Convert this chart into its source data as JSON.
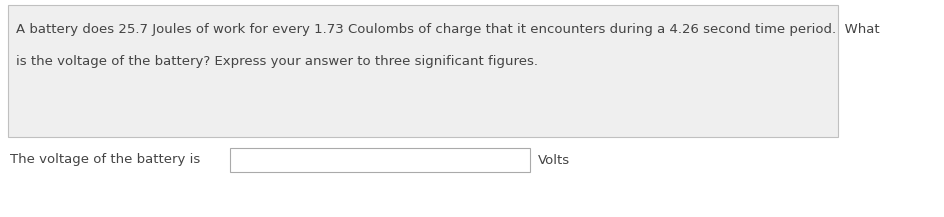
{
  "question_text_line1": "A battery does 25.7 Joules of work for every 1.73 Coulombs of charge that it encounters during a 4.26 second time period.  What",
  "question_text_line2": "is the voltage of the battery? Express your answer to three significant figures.",
  "answer_label": "The voltage of the battery is",
  "answer_unit": "Volts",
  "fig_bg_color": "#ffffff",
  "question_box_color": "#efefef",
  "question_box_border": "#c0c0c0",
  "input_box_bg": "#ffffff",
  "input_box_border": "#aaaaaa",
  "text_color": "#444444",
  "font_size": 9.5,
  "fig_width": 9.45,
  "fig_height": 2.17,
  "dpi": 100
}
